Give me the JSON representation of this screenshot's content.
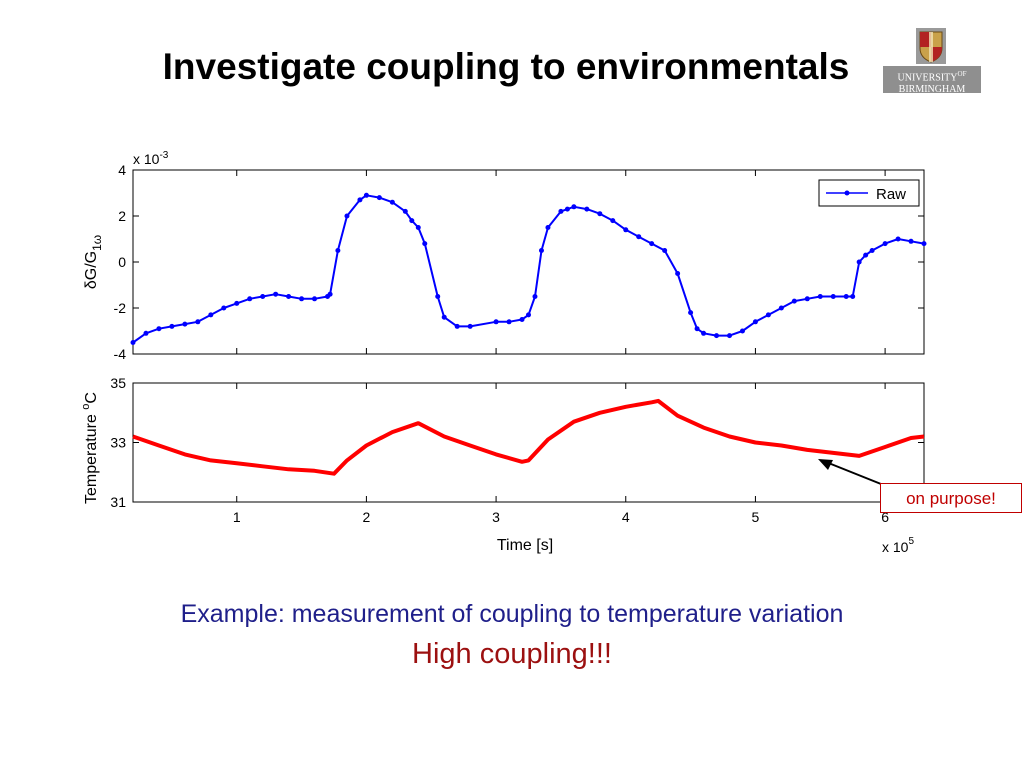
{
  "slide": {
    "title": "Investigate coupling to environmentals",
    "caption_line1": "Example: measurement of coupling to temperature variation",
    "caption_line2": "High coupling!!!"
  },
  "logo": {
    "line1": "UNIVERSITY",
    "line1_sup": "OF",
    "line2": "BIRMINGHAM"
  },
  "annotation": {
    "text": "on purpose!",
    "color": "#c00000"
  },
  "colors": {
    "raw_series": "#0000ff",
    "temperature_series": "#ff0000",
    "title": "#000000",
    "caption1": "#1f1f8a",
    "caption2": "#9c1010"
  },
  "chart_data": [
    {
      "type": "line",
      "ylabel": "δG/G",
      "ylabel_sub": "1ω",
      "y_multiplier": "x 10",
      "y_multiplier_exp": "-3",
      "xlim": [
        0.2,
        6.3
      ],
      "ylim": [
        -4,
        4
      ],
      "yticks": [
        -4,
        -2,
        0,
        2,
        4
      ],
      "xticks": [
        1,
        2,
        3,
        4,
        5,
        6
      ],
      "grid": false,
      "legend_position": "top-right",
      "series": [
        {
          "name": "Raw",
          "marker": "dot",
          "x": [
            0.2,
            0.3,
            0.4,
            0.5,
            0.6,
            0.7,
            0.8,
            0.9,
            1.0,
            1.1,
            1.2,
            1.3,
            1.4,
            1.5,
            1.6,
            1.7,
            1.72,
            1.78,
            1.85,
            1.95,
            2.0,
            2.1,
            2.2,
            2.3,
            2.35,
            2.4,
            2.45,
            2.55,
            2.6,
            2.7,
            2.8,
            3.0,
            3.1,
            3.2,
            3.25,
            3.3,
            3.35,
            3.4,
            3.5,
            3.55,
            3.6,
            3.7,
            3.8,
            3.9,
            4.0,
            4.1,
            4.2,
            4.3,
            4.4,
            4.5,
            4.55,
            4.6,
            4.7,
            4.8,
            4.9,
            5.0,
            5.1,
            5.2,
            5.3,
            5.4,
            5.5,
            5.6,
            5.7,
            5.75,
            5.8,
            5.85,
            5.9,
            6.0,
            6.1,
            6.2,
            6.3
          ],
          "y": [
            -3.5,
            -3.1,
            -2.9,
            -2.8,
            -2.7,
            -2.6,
            -2.3,
            -2.0,
            -1.8,
            -1.6,
            -1.5,
            -1.4,
            -1.5,
            -1.6,
            -1.6,
            -1.5,
            -1.4,
            0.5,
            2.0,
            2.7,
            2.9,
            2.8,
            2.6,
            2.2,
            1.8,
            1.5,
            0.8,
            -1.5,
            -2.4,
            -2.8,
            -2.8,
            -2.6,
            -2.6,
            -2.5,
            -2.3,
            -1.5,
            0.5,
            1.5,
            2.2,
            2.3,
            2.4,
            2.3,
            2.1,
            1.8,
            1.4,
            1.1,
            0.8,
            0.5,
            -0.5,
            -2.2,
            -2.9,
            -3.1,
            -3.2,
            -3.2,
            -3.0,
            -2.6,
            -2.3,
            -2.0,
            -1.7,
            -1.6,
            -1.5,
            -1.5,
            -1.5,
            -1.5,
            0.0,
            0.3,
            0.5,
            0.8,
            1.0,
            0.9,
            0.8
          ]
        }
      ]
    },
    {
      "type": "line",
      "ylabel": "Temperature ",
      "ylabel_deg": "o",
      "ylabel_unit": "C",
      "xlabel": "Time [s]",
      "x_multiplier": "x 10",
      "x_multiplier_exp": "5",
      "xlim": [
        0.2,
        6.3
      ],
      "ylim": [
        31,
        35
      ],
      "yticks": [
        31,
        33,
        35
      ],
      "xticks": [
        1,
        2,
        3,
        4,
        5,
        6
      ],
      "grid": false,
      "series": [
        {
          "x": [
            0.2,
            0.4,
            0.6,
            0.8,
            1.0,
            1.2,
            1.4,
            1.6,
            1.75,
            1.85,
            2.0,
            2.2,
            2.4,
            2.6,
            2.8,
            3.0,
            3.2,
            3.25,
            3.4,
            3.6,
            3.8,
            4.0,
            4.2,
            4.25,
            4.4,
            4.6,
            4.8,
            5.0,
            5.2,
            5.4,
            5.6,
            5.8,
            6.0,
            6.2,
            6.3
          ],
          "y": [
            33.2,
            32.9,
            32.6,
            32.4,
            32.3,
            32.2,
            32.1,
            32.05,
            31.95,
            32.4,
            32.9,
            33.35,
            33.65,
            33.2,
            32.9,
            32.6,
            32.35,
            32.4,
            33.1,
            33.7,
            34.0,
            34.2,
            34.35,
            34.4,
            33.9,
            33.5,
            33.2,
            33.0,
            32.9,
            32.75,
            32.65,
            32.55,
            32.85,
            33.15,
            33.2
          ]
        }
      ]
    }
  ]
}
